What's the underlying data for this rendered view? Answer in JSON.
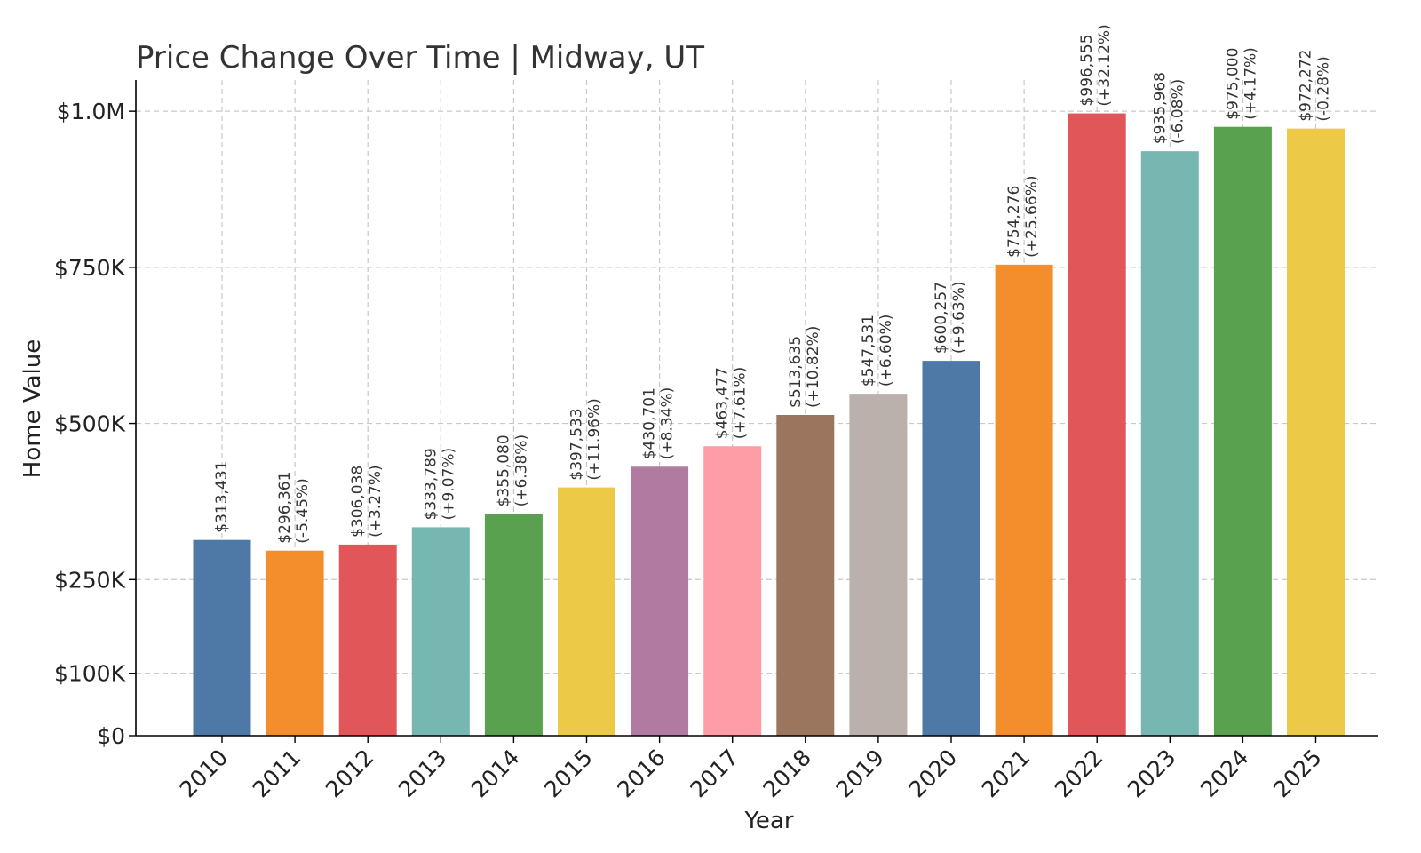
{
  "chart_data": {
    "type": "bar",
    "title": "Price Change Over Time | Midway, UT",
    "xlabel": "Year",
    "ylabel": "Home Value",
    "ylim": [
      0,
      1050000
    ],
    "grid": true,
    "yticks": [
      {
        "value": 0,
        "label": "$0"
      },
      {
        "value": 100000,
        "label": "$100K"
      },
      {
        "value": 250000,
        "label": "$250K"
      },
      {
        "value": 500000,
        "label": "$500K"
      },
      {
        "value": 750000,
        "label": "$750K"
      },
      {
        "value": 1000000,
        "label": "$1.0M"
      }
    ],
    "categories": [
      "2010",
      "2011",
      "2012",
      "2013",
      "2014",
      "2015",
      "2016",
      "2017",
      "2018",
      "2019",
      "2020",
      "2021",
      "2022",
      "2023",
      "2024",
      "2025"
    ],
    "values": [
      313431,
      296361,
      306038,
      333789,
      355080,
      397533,
      430701,
      463477,
      513635,
      547531,
      600257,
      754276,
      996555,
      935968,
      975000,
      972272
    ],
    "value_labels": [
      "$313,431",
      "$296,361",
      "$306,038",
      "$333,789",
      "$355,080",
      "$397,533",
      "$430,701",
      "$463,477",
      "$513,635",
      "$547,531",
      "$600,257",
      "$754,276",
      "$996,555",
      "$935,968",
      "$975,000",
      "$972,272"
    ],
    "change_labels": [
      "",
      "(-5.45%)",
      "(+3.27%)",
      "(+9.07%)",
      "(+6.38%)",
      "(+11.96%)",
      "(+8.34%)",
      "(+7.61%)",
      "(+10.82%)",
      "(+6.60%)",
      "(+9.63%)",
      "(+25.66%)",
      "(+32.12%)",
      "(-6.08%)",
      "(+4.17%)",
      "(-0.28%)"
    ],
    "colors": [
      "#4e79a7",
      "#f28e2b",
      "#e15759",
      "#76b7b2",
      "#59a14f",
      "#edc948",
      "#b07aa1",
      "#ff9da7",
      "#9c755f",
      "#bab0ac",
      "#4e79a7",
      "#f28e2b",
      "#e15759",
      "#76b7b2",
      "#59a14f",
      "#edc948"
    ]
  }
}
